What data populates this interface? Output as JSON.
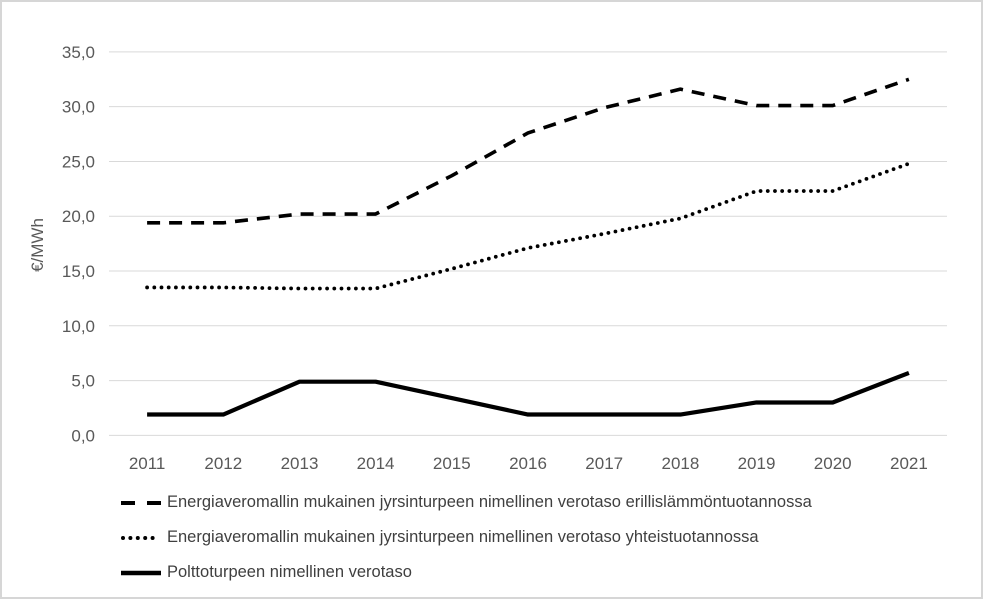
{
  "chart_data": {
    "type": "line",
    "ylabel": "€/MWh",
    "x": [
      "2011",
      "2012",
      "2013",
      "2014",
      "2015",
      "2016",
      "2017",
      "2018",
      "2019",
      "2020",
      "2021"
    ],
    "series": [
      {
        "name": "Energiaveromallin mukainen jyrsinturpeen nimellinen verotaso erillislämmöntuotannossa",
        "style": "dashed",
        "values": [
          19.4,
          19.4,
          20.2,
          20.2,
          23.7,
          27.6,
          29.9,
          31.6,
          30.1,
          30.1,
          32.5
        ]
      },
      {
        "name": "Energiaveromallin mukainen jyrsinturpeen nimellinen verotaso yhteistuotannossa",
        "style": "dotted",
        "values": [
          13.5,
          13.5,
          13.4,
          13.4,
          15.2,
          17.1,
          18.4,
          19.8,
          22.3,
          22.3,
          24.8
        ]
      },
      {
        "name": "Polttoturpeen nimellinen verotaso",
        "style": "solid",
        "values": [
          1.9,
          1.9,
          4.9,
          4.9,
          3.4,
          1.9,
          1.9,
          1.9,
          3.0,
          3.0,
          5.7
        ]
      }
    ],
    "ylim": [
      0,
      35
    ],
    "ytick_step": 5,
    "ytick_labels": [
      "0,0",
      "5,0",
      "10,0",
      "15,0",
      "20,0",
      "25,0",
      "30,0",
      "35,0"
    ],
    "grid": true,
    "legend_position": "bottom-left"
  },
  "colors": {
    "line": "#000000",
    "grid": "#D9D9D9",
    "axis_text": "#595959",
    "legend_text": "#3F3F3F",
    "border": "#D6D6D6"
  }
}
